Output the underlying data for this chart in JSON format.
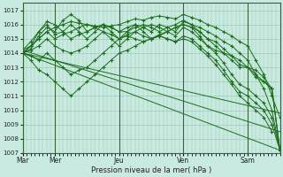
{
  "title": "",
  "xlabel": "Pression niveau de la mer( hPa )",
  "ylabel": "",
  "bg_color": "#c8eae0",
  "plot_bg_color": "#c8eae0",
  "grid_color": "#a0c8b8",
  "line_color": "#1a6e1a",
  "dark_line_color": "#2d5a2d",
  "ylim": [
    1007,
    1017.5
  ],
  "yticks": [
    1007,
    1008,
    1009,
    1010,
    1011,
    1012,
    1013,
    1014,
    1015,
    1016,
    1017
  ],
  "xtick_labels": [
    "Mar",
    "Mer",
    "Jeu",
    "Ven",
    "Sam"
  ],
  "xtick_positions": [
    0,
    24,
    72,
    120,
    168
  ],
  "vlines": [
    0,
    24,
    72,
    120,
    168
  ],
  "total_hours": 192,
  "series": [
    {
      "x": [
        0,
        6,
        12,
        18,
        24,
        30,
        36,
        42,
        48,
        54,
        60,
        66,
        72,
        78,
        84,
        90,
        96,
        102,
        108,
        114,
        120,
        126,
        132,
        138,
        144,
        150,
        156,
        162,
        168,
        174,
        180,
        186,
        192
      ],
      "y": [
        1014.0,
        1014.5,
        1015.0,
        1015.5,
        1015.8,
        1016.0,
        1016.2,
        1016.1,
        1016.0,
        1015.9,
        1015.8,
        1015.9,
        1016.0,
        1016.2,
        1016.4,
        1016.3,
        1016.5,
        1016.6,
        1016.5,
        1016.4,
        1016.7,
        1016.5,
        1016.3,
        1016.0,
        1015.8,
        1015.5,
        1015.2,
        1014.8,
        1014.5,
        1013.5,
        1012.5,
        1011.0,
        1009.5
      ]
    },
    {
      "x": [
        0,
        6,
        12,
        18,
        24,
        30,
        36,
        42,
        48,
        54,
        60,
        66,
        72,
        78,
        84,
        90,
        96,
        102,
        108,
        114,
        120,
        126,
        132,
        138,
        144,
        150,
        156,
        162,
        168,
        174,
        180,
        186,
        192
      ],
      "y": [
        1014.0,
        1014.3,
        1015.2,
        1015.8,
        1015.5,
        1016.3,
        1016.7,
        1016.3,
        1015.5,
        1015.8,
        1016.0,
        1015.8,
        1015.5,
        1015.8,
        1016.0,
        1015.8,
        1015.5,
        1016.0,
        1015.8,
        1015.5,
        1016.2,
        1016.0,
        1015.8,
        1015.5,
        1015.2,
        1014.8,
        1014.5,
        1014.0,
        1013.5,
        1012.5,
        1011.5,
        1010.0,
        1007.2
      ]
    },
    {
      "x": [
        0,
        6,
        12,
        18,
        24,
        30,
        36,
        42,
        48,
        54,
        60,
        66,
        72,
        78,
        84,
        90,
        96,
        102,
        108,
        114,
        120,
        126,
        132,
        138,
        144,
        150,
        156,
        162,
        168,
        174,
        180,
        186,
        192
      ],
      "y": [
        1014.0,
        1014.5,
        1015.5,
        1016.2,
        1016.0,
        1015.5,
        1015.0,
        1015.3,
        1015.5,
        1015.8,
        1016.0,
        1015.8,
        1015.5,
        1015.5,
        1015.8,
        1016.0,
        1015.8,
        1015.5,
        1015.8,
        1016.0,
        1016.3,
        1016.0,
        1015.5,
        1015.0,
        1014.5,
        1014.0,
        1013.5,
        1013.0,
        1013.0,
        1012.5,
        1012.0,
        1011.5,
        1007.2
      ]
    },
    {
      "x": [
        0,
        6,
        12,
        18,
        24,
        30,
        36,
        42,
        48,
        54,
        60,
        66,
        72,
        78,
        84,
        90,
        96,
        102,
        108,
        114,
        120,
        126,
        132,
        138,
        144,
        150,
        156,
        162,
        168,
        174,
        180,
        186,
        192
      ],
      "y": [
        1014.2,
        1014.5,
        1015.0,
        1015.5,
        1015.0,
        1015.3,
        1015.5,
        1015.8,
        1016.0,
        1015.8,
        1015.5,
        1015.3,
        1015.0,
        1015.3,
        1015.5,
        1015.8,
        1016.0,
        1015.8,
        1015.5,
        1015.8,
        1016.0,
        1015.8,
        1015.5,
        1015.0,
        1014.8,
        1014.3,
        1013.8,
        1013.2,
        1013.0,
        1012.8,
        1012.3,
        1011.5,
        1007.2
      ]
    },
    {
      "x": [
        0,
        6,
        12,
        18,
        24,
        30,
        36,
        42,
        48,
        54,
        60,
        66,
        72,
        78,
        84,
        90,
        96,
        102,
        108,
        114,
        120,
        126,
        132,
        138,
        144,
        150,
        156,
        162,
        168,
        174,
        180,
        186,
        192
      ],
      "y": [
        1014.2,
        1014.8,
        1015.5,
        1016.0,
        1015.3,
        1015.5,
        1016.0,
        1015.5,
        1015.0,
        1015.5,
        1016.0,
        1015.5,
        1015.0,
        1015.5,
        1016.0,
        1015.5,
        1015.0,
        1015.3,
        1015.5,
        1015.8,
        1016.0,
        1015.8,
        1015.2,
        1014.5,
        1014.2,
        1014.0,
        1013.8,
        1013.5,
        1013.0,
        1012.3,
        1012.0,
        1011.5,
        1007.2
      ]
    },
    {
      "x": [
        0,
        6,
        12,
        18,
        24,
        30,
        36,
        42,
        48,
        54,
        60,
        66,
        72,
        78,
        84,
        90,
        96,
        102,
        108,
        114,
        120,
        126,
        132,
        138,
        144,
        150,
        156,
        162,
        168,
        174,
        180,
        186,
        192
      ],
      "y": [
        1014.0,
        1014.2,
        1014.5,
        1015.0,
        1014.5,
        1014.2,
        1014.0,
        1014.2,
        1014.5,
        1015.0,
        1015.5,
        1015.0,
        1014.5,
        1015.0,
        1015.5,
        1015.2,
        1015.0,
        1015.2,
        1015.5,
        1015.2,
        1015.8,
        1015.5,
        1015.0,
        1014.5,
        1014.0,
        1013.3,
        1012.5,
        1011.8,
        1011.5,
        1011.0,
        1010.5,
        1009.5,
        1007.2
      ]
    },
    {
      "x": [
        0,
        6,
        12,
        18,
        24,
        30,
        36,
        42,
        48,
        54,
        60,
        66,
        72,
        78,
        84,
        90,
        96,
        102,
        108,
        114,
        120,
        126,
        132,
        138,
        144,
        150,
        156,
        162,
        168,
        174,
        180,
        186,
        192
      ],
      "y": [
        1014.0,
        1013.8,
        1013.5,
        1014.0,
        1013.5,
        1013.0,
        1012.5,
        1012.8,
        1013.0,
        1013.5,
        1014.0,
        1014.5,
        1015.0,
        1015.2,
        1015.0,
        1014.8,
        1015.0,
        1015.2,
        1015.0,
        1014.8,
        1015.2,
        1015.0,
        1014.5,
        1014.0,
        1013.5,
        1012.8,
        1012.0,
        1011.3,
        1011.0,
        1010.5,
        1010.0,
        1009.0,
        1007.2
      ]
    },
    {
      "x": [
        0,
        6,
        12,
        18,
        24,
        30,
        36,
        42,
        48,
        54,
        60,
        66,
        72,
        78,
        84,
        90,
        96,
        102,
        108,
        114,
        120,
        126,
        132,
        138,
        144,
        150,
        156,
        162,
        168,
        174,
        180,
        186
      ],
      "y": [
        1014.0,
        1013.5,
        1012.8,
        1012.5,
        1012.0,
        1011.5,
        1011.0,
        1011.5,
        1012.0,
        1012.5,
        1013.0,
        1013.5,
        1014.0,
        1014.2,
        1014.5,
        1014.8,
        1015.0,
        1015.2,
        1015.0,
        1014.8,
        1015.0,
        1014.8,
        1014.3,
        1013.8,
        1013.2,
        1012.5,
        1011.8,
        1011.0,
        1010.5,
        1010.0,
        1009.5,
        1008.5
      ]
    },
    {
      "x": [
        0,
        192
      ],
      "y": [
        1014.0,
        1007.2
      ]
    },
    {
      "x": [
        0,
        192
      ],
      "y": [
        1014.2,
        1008.5
      ]
    },
    {
      "x": [
        0,
        192
      ],
      "y": [
        1014.0,
        1009.8
      ]
    }
  ]
}
